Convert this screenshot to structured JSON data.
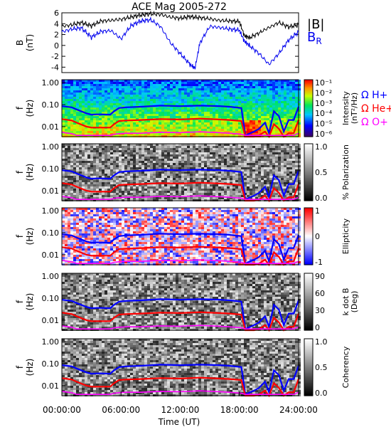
{
  "chart_data": [
    {
      "type": "line",
      "title": "ACE Mag 2005-272",
      "ylabel": "B",
      "yunit": "(nT)",
      "ylim": [
        -5,
        6
      ],
      "yticks": [
        "6",
        "4",
        "2",
        "0",
        "-2",
        "-4"
      ],
      "xlim": [
        0,
        24
      ],
      "series": [
        {
          "name": "|B|",
          "color": "#000000",
          "x": [
            0,
            1,
            2,
            3,
            4,
            5,
            6,
            7,
            8,
            9,
            10,
            11,
            12,
            13,
            14,
            15,
            16,
            17,
            18,
            18.5,
            19,
            20,
            21,
            22,
            23,
            24
          ],
          "values": [
            3.5,
            3.8,
            4.2,
            3.6,
            4.5,
            4.6,
            4.8,
            5.2,
            5.6,
            5.8,
            5.7,
            5.2,
            5.0,
            5.3,
            5.1,
            4.9,
            4.6,
            4.5,
            4.4,
            1.8,
            1.4,
            2.3,
            3.3,
            4.2,
            3.4,
            3.8
          ]
        },
        {
          "name": "B",
          "subscript": "R",
          "color": "#0000ee",
          "x": [
            0,
            1,
            2,
            3,
            4,
            5,
            6,
            7,
            8,
            9,
            10,
            11,
            12,
            13,
            13.5,
            14,
            15,
            16,
            17,
            18,
            18.5,
            19,
            20,
            21,
            22,
            23,
            24
          ],
          "values": [
            2.5,
            3.0,
            3.2,
            1.5,
            2.6,
            2.7,
            1.2,
            3.6,
            4.5,
            4.7,
            3.5,
            0.5,
            -1.5,
            -3.5,
            -4.2,
            0.5,
            3.5,
            3.3,
            3.0,
            2.8,
            0.8,
            0.0,
            -1.5,
            -3.5,
            -1.5,
            1.0,
            2.5
          ]
        }
      ]
    },
    {
      "type": "heatmap",
      "ylabel": "f",
      "yunit": "(Hz)",
      "yticks": [
        "1.00",
        "0.10",
        "0.01"
      ],
      "colorbar": {
        "label": "Intensity",
        "unit": "(nT²/Hz)",
        "ticks": [
          "10⁻¹",
          "10⁻²",
          "10⁻³",
          "10⁻⁴",
          "10⁻⁵",
          "10⁻⁶"
        ],
        "scale": "log",
        "colormap": "rainbow"
      },
      "legend": [
        "Ω H+",
        "Ω He+",
        "Ω O+"
      ]
    },
    {
      "type": "heatmap",
      "ylabel": "f",
      "yunit": "(Hz)",
      "yticks": [
        "1.00",
        "0.10",
        "0.01"
      ],
      "colorbar": {
        "label": "% Polarization",
        "ticks": [
          "1.0",
          "0.5",
          "0.0"
        ],
        "colormap": "gray"
      }
    },
    {
      "type": "heatmap",
      "ylabel": "f",
      "yunit": "(Hz)",
      "yticks": [
        "1.00",
        "0.10",
        "0.01"
      ],
      "colorbar": {
        "label": "Ellipticity",
        "ticks": [
          "1",
          "0",
          "-1"
        ],
        "colormap": "blue-white-red"
      }
    },
    {
      "type": "heatmap",
      "ylabel": "f",
      "yunit": "(Hz)",
      "yticks": [
        "1.00",
        "0.10",
        "0.01"
      ],
      "colorbar": {
        "label": "k dot B",
        "unit": "(Deg)",
        "ticks": [
          "90",
          "60",
          "30",
          "0"
        ],
        "colormap": "gray"
      }
    },
    {
      "type": "heatmap",
      "ylabel": "f",
      "yunit": "(Hz)",
      "yticks": [
        "1.00",
        "0.10",
        "0.01"
      ],
      "colorbar": {
        "label": "Coherency",
        "ticks": [
          "1.0",
          "0.5",
          "0.0"
        ],
        "colormap": "gray"
      },
      "xlabel": "Time (UT)",
      "xticks": [
        "00:00:00",
        "06:00:00",
        "12:00:00",
        "18:00:00",
        "24:00:00"
      ]
    }
  ],
  "gyro_lines": {
    "x": [
      0,
      1,
      1.5,
      2.5,
      3,
      3.5,
      4,
      4.9,
      5.3,
      5.8,
      6.5,
      8,
      10,
      12,
      14,
      16,
      17,
      18.2,
      18.6,
      19.5,
      20,
      20.6,
      21,
      21.5,
      22,
      22.5,
      23,
      23.5,
      24
    ],
    "h_plus": [
      0.085,
      0.075,
      0.06,
      0.04,
      0.035,
      0.036,
      0.036,
      0.035,
      0.05,
      0.07,
      0.075,
      0.08,
      0.09,
      0.085,
      0.09,
      0.085,
      0.08,
      0.07,
      0.004,
      0.006,
      0.008,
      0.015,
      0.005,
      0.05,
      0.03,
      0.006,
      0.02,
      0.02,
      0.08
    ],
    "he_plus": [
      0.022,
      0.019,
      0.015,
      0.01,
      0.009,
      0.009,
      0.009,
      0.009,
      0.013,
      0.018,
      0.019,
      0.02,
      0.022,
      0.021,
      0.023,
      0.021,
      0.02,
      0.018,
      0.003,
      0.003,
      0.004,
      0.006,
      0.003,
      0.013,
      0.008,
      0.003,
      0.005,
      0.005,
      0.02
    ],
    "o_plus": [
      0.0055,
      0.0048,
      0.004,
      0.004,
      0.004,
      0.004,
      0.004,
      0.004,
      0.0045,
      0.0048,
      0.005,
      0.005,
      0.0055,
      0.0053,
      0.0058,
      0.0053,
      0.005,
      0.0045,
      0.004,
      0.004,
      0.004,
      0.004,
      0.004,
      0.004,
      0.004,
      0.004,
      0.004,
      0.004,
      0.005
    ]
  },
  "colors": {
    "h_plus": "#0000ff",
    "he_plus": "#ff0000",
    "o_plus": "#ff00ff",
    "axis": "#000000"
  },
  "legend_labels": {
    "b_mag": "|B|",
    "b_r": "B",
    "b_r_sub": "R"
  }
}
